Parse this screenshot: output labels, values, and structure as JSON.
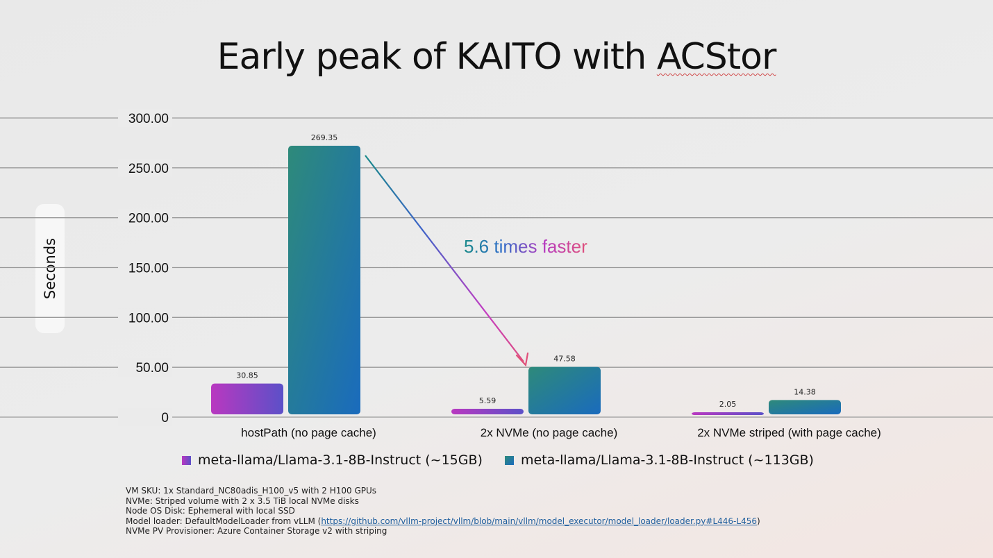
{
  "title_prefix": "Early peak of KAITO with ",
  "title_suffix": "ACStor",
  "annotation": "5.6 times faster",
  "footnotes": {
    "vm_sku": "VM SKU: 1x Standard_NC80adis_H100_v5 with 2 H100 GPUs",
    "nvme": "NVMe: Striped volume with 2 x 3.5 TiB local NVMe disks",
    "os_disk": "Node OS Disk: Ephemeral with local SSD",
    "loader_prefix": "Model loader: DefaultModelLoader from vLLM (",
    "loader_link": "https://github.com/vllm-project/vllm/blob/main/vllm/model_executor/model_loader/loader.py#L446-L456",
    "loader_suffix": ")",
    "provisioner": "NVMe PV Provisioner: Azure Container Storage v2 with striping"
  },
  "colors": {
    "small_gradient": [
      "#b938c0",
      "#5c50c8"
    ],
    "large_gradient": [
      "#2e8a7a",
      "#1a6bbd"
    ],
    "arrow_gradient": [
      "#1a8a8a",
      "#3d64c8",
      "#c43cc2",
      "#e0507a"
    ],
    "grid": "#9a9a9a"
  },
  "chart_data": {
    "type": "bar",
    "categories": [
      "hostPath (no page cache)",
      "2x NVMe (no page cache)",
      "2x NVMe striped (with page cache)"
    ],
    "series": [
      {
        "name": "meta-llama/Llama-3.1-8B-Instruct (~15GB)",
        "values": [
          30.85,
          5.59,
          2.05
        ],
        "labels": [
          "30.85",
          "5.59",
          "2.05"
        ]
      },
      {
        "name": "meta-llama/Llama-3.1-8B-Instruct (~113GB)",
        "values": [
          269.35,
          47.58,
          14.38
        ],
        "labels": [
          "269.35",
          "47.58",
          "14.38"
        ]
      }
    ],
    "ylabel": "Seconds",
    "ylim": [
      0,
      300
    ],
    "yticks": [
      0,
      50,
      100,
      150,
      200,
      250,
      300
    ],
    "ytick_labels": [
      "0",
      "50.00",
      "100.00",
      "150.00",
      "200.00",
      "250.00",
      "300.00"
    ],
    "grid": true,
    "legend": "bottom"
  }
}
